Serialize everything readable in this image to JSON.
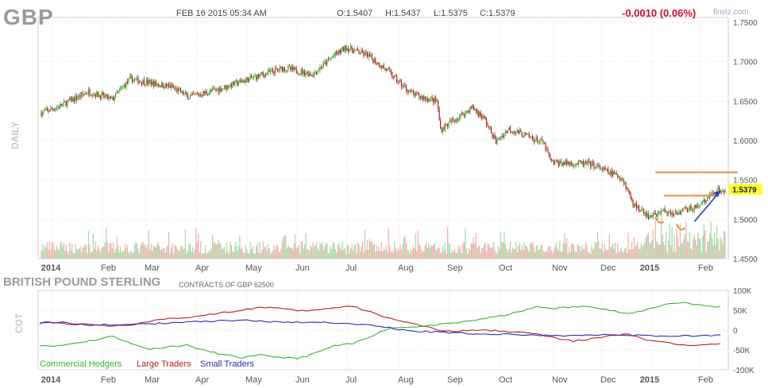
{
  "header": {
    "symbol": "GBP",
    "datetime": "FEB 16 2015 05:34 AM",
    "open": "O:1.5407",
    "high": "H:1.5437",
    "low": "L:1.5375",
    "close": "C:1.5379",
    "change": "-0.0010 (0.06%)",
    "brand": "finviz.com"
  },
  "labels": {
    "daily": "DAILY",
    "cot": "COT",
    "cot_title": "BRITISH POUND STERLING",
    "cot_subtitle": "CONTRACTS OF GBP 62500",
    "last_price_tag": "1.5379"
  },
  "colors": {
    "up": "#3aa83a",
    "down": "#b52020",
    "vol_up": "#a9dca9",
    "vol_down": "#f4b4b4",
    "grid": "#e2e2e2",
    "orange": "#f08a3c",
    "arrow": "#2b3fc9",
    "price_tag": "#ffff33",
    "commercial": "#31b531",
    "large": "#b52020",
    "small": "#2b2bb5"
  },
  "chart_data": [
    {
      "type": "candlestick",
      "x_ticks": [
        "2014",
        "Feb",
        "Mar",
        "Apr",
        "May",
        "Jun",
        "Jul",
        "Aug",
        "Sep",
        "Oct",
        "Nov",
        "Dec",
        "2015",
        "Feb"
      ],
      "y_ticks": [
        "1.7500",
        "1.7000",
        "1.6500",
        "1.6000",
        "1.5500",
        "1.5000",
        "1.4500"
      ],
      "ylim": [
        1.45,
        1.75
      ],
      "price_path": [
        [
          0,
          1.635
        ],
        [
          15,
          1.643
        ],
        [
          40,
          1.662
        ],
        [
          60,
          1.652
        ],
        [
          75,
          1.678
        ],
        [
          110,
          1.668
        ],
        [
          125,
          1.655
        ],
        [
          150,
          1.665
        ],
        [
          180,
          1.68
        ],
        [
          205,
          1.692
        ],
        [
          230,
          1.684
        ],
        [
          248,
          1.708
        ],
        [
          258,
          1.718
        ],
        [
          276,
          1.708
        ],
        [
          292,
          1.69
        ],
        [
          304,
          1.672
        ],
        [
          315,
          1.658
        ],
        [
          335,
          1.65
        ],
        [
          338,
          1.614
        ],
        [
          365,
          1.642
        ],
        [
          375,
          1.628
        ],
        [
          385,
          1.598
        ],
        [
          396,
          1.615
        ],
        [
          425,
          1.597
        ],
        [
          432,
          1.572
        ],
        [
          465,
          1.57
        ],
        [
          480,
          1.56
        ],
        [
          492,
          1.552
        ],
        [
          502,
          1.518
        ],
        [
          515,
          1.503
        ],
        [
          528,
          1.51
        ],
        [
          537,
          1.508
        ],
        [
          552,
          1.515
        ],
        [
          560,
          1.52
        ],
        [
          571,
          1.537
        ]
      ],
      "last": 1.5379
    },
    {
      "type": "line",
      "x_ticks": [
        "2014",
        "Feb",
        "Mar",
        "Apr",
        "May",
        "Jun",
        "Jul",
        "Aug",
        "Sep",
        "Oct",
        "Nov",
        "Dec",
        "2015",
        "Feb"
      ],
      "y_ticks": [
        "100K",
        "50K",
        "0",
        "-50K",
        "-100K"
      ],
      "ylim": [
        -100000,
        100000
      ],
      "series": [
        {
          "name": "Commercial Hedgers",
          "values": [
            -38000,
            -40000,
            -32000,
            -25000,
            -15000,
            -35000,
            -48000,
            -42000,
            -38000,
            -52000,
            -62000,
            -70000,
            -63000,
            -68000,
            -72000,
            -58000,
            -40000,
            -35000,
            -15000,
            5000,
            8000,
            10000,
            15000,
            20000,
            28000,
            35000,
            45000,
            58000,
            55000,
            58000,
            60000,
            50000,
            40000,
            52000,
            65000,
            70000,
            62000,
            58000
          ]
        },
        {
          "name": "Large Traders",
          "values": [
            20000,
            18000,
            14000,
            12000,
            10000,
            14000,
            22000,
            28000,
            32000,
            38000,
            45000,
            50000,
            58000,
            55000,
            48000,
            50000,
            56000,
            60000,
            45000,
            30000,
            20000,
            8000,
            -4000,
            -2000,
            0,
            -2000,
            -5000,
            -10000,
            -20000,
            -28000,
            -22000,
            -15000,
            -10000,
            -25000,
            -32000,
            -38000,
            -36000,
            -33000
          ]
        },
        {
          "name": "Small Traders",
          "values": [
            18000,
            20000,
            16000,
            14000,
            12000,
            14000,
            16000,
            18000,
            20000,
            22000,
            24000,
            25000,
            22000,
            20000,
            20000,
            20000,
            18000,
            16000,
            12000,
            6000,
            -2000,
            -4000,
            -6000,
            -8000,
            -10000,
            -10000,
            -12000,
            -13000,
            -14000,
            -14000,
            -13000,
            -12000,
            -12000,
            -14000,
            -15000,
            -15000,
            -14000,
            -13000
          ]
        }
      ]
    }
  ]
}
